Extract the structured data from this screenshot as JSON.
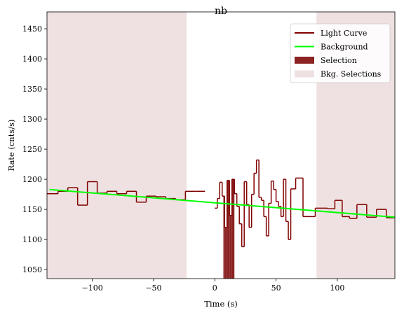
{
  "chart_data": {
    "type": "line",
    "title": "nb",
    "xlabel": "Time (s)",
    "ylabel": "Rate (cnts/s)",
    "xlim": [
      -137,
      147
    ],
    "ylim": [
      1035,
      1478
    ],
    "x_ticks": [
      -100,
      -50,
      0,
      50,
      100
    ],
    "x_tick_labels": [
      "−100",
      "−50",
      "0",
      "50",
      "100"
    ],
    "y_ticks": [
      1050,
      1100,
      1150,
      1200,
      1250,
      1300,
      1350,
      1400,
      1450
    ],
    "y_tick_labels": [
      "1050",
      "1100",
      "1150",
      "1200",
      "1250",
      "1300",
      "1350",
      "1400",
      "1450"
    ],
    "grid": false,
    "legend_position": "top-right",
    "legend": [
      {
        "label": "Light Curve",
        "kind": "line",
        "color": "#800000"
      },
      {
        "label": "Background",
        "kind": "line",
        "color": "#00ff00"
      },
      {
        "label": "Selection",
        "kind": "patch",
        "color": "#8b2323"
      },
      {
        "label": "Bkg. Selections",
        "kind": "patch",
        "color": "#efe1e1"
      }
    ],
    "colors": {
      "light_curve": "#800000",
      "background": "#00ff00",
      "selection": "#8b2323",
      "bkg_selection": "#efe1e1"
    },
    "bkg_selections": [
      [
        -137,
        -23
      ],
      [
        83,
        147
      ]
    ],
    "selection": [
      7,
      16
    ],
    "background_line": {
      "x": [
        -135,
        147
      ],
      "y": [
        1183,
        1137
      ]
    },
    "light_curve": {
      "bin_edges": [
        -137,
        -128,
        -120,
        -112,
        -104,
        -96,
        -88,
        -80,
        -72,
        -64,
        -56,
        -48,
        -40,
        -32,
        -24,
        -16,
        -8,
        0,
        2,
        4,
        6,
        8,
        10,
        12,
        14,
        16,
        18,
        20,
        22,
        24,
        26,
        28,
        30,
        32,
        34,
        36,
        38,
        40,
        42,
        44,
        46,
        48,
        50,
        52,
        54,
        56,
        58,
        60,
        62,
        66,
        72,
        82,
        92,
        98,
        104,
        110,
        116,
        124,
        132,
        140,
        147
      ],
      "values": [
        1176,
        1180,
        1186,
        1157,
        1196,
        1177,
        1180,
        1176,
        1180,
        1162,
        1172,
        1171,
        1168,
        1166,
        1180,
        1180,
        null,
        1152,
        1168,
        1195,
        1172,
        1120,
        1198,
        1140,
        1200,
        1176,
        1155,
        1126,
        1088,
        1196,
        1158,
        1120,
        1175,
        1210,
        1232,
        1170,
        1165,
        1138,
        1106,
        1160,
        1197,
        1183,
        1163,
        1155,
        1138,
        1200,
        1130,
        1100,
        1184,
        1202,
        1138,
        1152,
        1151,
        1165,
        1138,
        1135,
        1158,
        1137,
        1150,
        1136
      ]
    }
  }
}
